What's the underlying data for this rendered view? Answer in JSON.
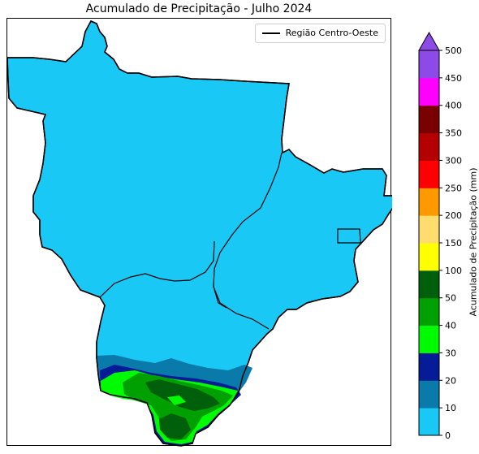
{
  "title": "Acumulado de Precipitação - Julho 2024",
  "legend": {
    "label": "Região Centro-Oeste",
    "line_color": "#000000"
  },
  "colorbar": {
    "label": "Acumulado de Precipitação (mm)",
    "ticks": [
      "0",
      "10",
      "20",
      "30",
      "40",
      "50",
      "100",
      "150",
      "200",
      "250",
      "300",
      "350",
      "400",
      "450",
      "500"
    ],
    "colors": [
      "#1ac8f5",
      "#0a7aaa",
      "#051c96",
      "#00fa00",
      "#00a000",
      "#005f0a",
      "#ffff00",
      "#ffdc6e",
      "#ff9900",
      "#ff0000",
      "#b40000",
      "#780000",
      "#ff00ff",
      "#8c4be6"
    ],
    "extend": "max"
  },
  "map": {
    "region": "Região Centro-Oeste",
    "base_color": "#1ac8f5"
  }
}
